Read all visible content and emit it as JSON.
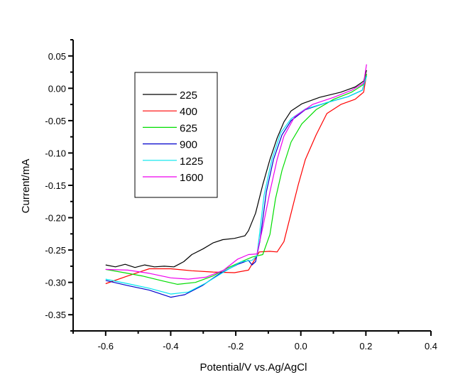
{
  "chart_data": {
    "type": "line",
    "title": "",
    "xlabel": "Potential/V vs.Ag/AgCl",
    "ylabel": "Current/mA",
    "xlim": [
      -0.7,
      0.4
    ],
    "ylim": [
      -0.375,
      0.075
    ],
    "x_ticks": [
      -0.6,
      -0.4,
      -0.2,
      0.0,
      0.2,
      0.4
    ],
    "x_tick_labels": [
      "-0.6",
      "-0.4",
      "-0.2",
      "0.0",
      "0.2",
      "0.4"
    ],
    "x_minor_ticks": [
      -0.7,
      -0.5,
      -0.3,
      -0.1,
      0.1,
      0.3
    ],
    "y_ticks": [
      0.05,
      0.0,
      -0.05,
      -0.1,
      -0.15,
      -0.2,
      -0.25,
      -0.3,
      -0.35
    ],
    "y_tick_labels": [
      "0.05",
      "0.00",
      "-0.05",
      "-0.10",
      "-0.15",
      "-0.20",
      "-0.25",
      "-0.30",
      "-0.35"
    ],
    "y_minor_ticks": [
      0.075,
      0.025,
      -0.025,
      -0.075,
      -0.125,
      -0.175,
      -0.225,
      -0.275,
      -0.325,
      -0.375
    ],
    "grid": false,
    "legend_position": "top-left",
    "series": [
      {
        "name": "225",
        "color": "#000000",
        "points": [
          [
            -0.6,
            -0.273
          ],
          [
            -0.57,
            -0.276
          ],
          [
            -0.54,
            -0.272
          ],
          [
            -0.51,
            -0.277
          ],
          [
            -0.48,
            -0.273
          ],
          [
            -0.45,
            -0.276
          ],
          [
            -0.42,
            -0.275
          ],
          [
            -0.39,
            -0.276
          ],
          [
            -0.36,
            -0.268
          ],
          [
            -0.335,
            -0.257
          ],
          [
            -0.3,
            -0.248
          ],
          [
            -0.27,
            -0.239
          ],
          [
            -0.24,
            -0.234
          ],
          [
            -0.204,
            -0.232
          ],
          [
            -0.172,
            -0.228
          ],
          [
            -0.161,
            -0.22
          ],
          [
            -0.139,
            -0.193
          ],
          [
            -0.117,
            -0.149
          ],
          [
            -0.095,
            -0.11
          ],
          [
            -0.073,
            -0.077
          ],
          [
            -0.052,
            -0.052
          ],
          [
            -0.03,
            -0.035
          ],
          [
            0.003,
            -0.024
          ],
          [
            0.058,
            -0.014
          ],
          [
            0.123,
            -0.006
          ],
          [
            0.167,
            0.002
          ],
          [
            0.193,
            0.011
          ],
          [
            0.202,
            0.028
          ]
        ]
      },
      {
        "name": "400",
        "color": "#ff0000",
        "points": [
          [
            -0.6,
            -0.302
          ],
          [
            -0.532,
            -0.29
          ],
          [
            -0.466,
            -0.279
          ],
          [
            -0.4,
            -0.279
          ],
          [
            -0.335,
            -0.282
          ],
          [
            -0.27,
            -0.284
          ],
          [
            -0.204,
            -0.285
          ],
          [
            -0.161,
            -0.281
          ],
          [
            -0.128,
            -0.253
          ],
          [
            -0.095,
            -0.252
          ],
          [
            -0.073,
            -0.253
          ],
          [
            -0.052,
            -0.237
          ],
          [
            -0.03,
            -0.193
          ],
          [
            -0.008,
            -0.149
          ],
          [
            0.014,
            -0.11
          ],
          [
            0.047,
            -0.072
          ],
          [
            0.08,
            -0.039
          ],
          [
            0.123,
            -0.025
          ],
          [
            0.167,
            -0.017
          ],
          [
            0.193,
            -0.006
          ],
          [
            0.202,
            0.022
          ]
        ]
      },
      {
        "name": "625",
        "color": "#00dd00",
        "points": [
          [
            -0.6,
            -0.28
          ],
          [
            -0.543,
            -0.285
          ],
          [
            -0.488,
            -0.29
          ],
          [
            -0.423,
            -0.298
          ],
          [
            -0.379,
            -0.303
          ],
          [
            -0.324,
            -0.3
          ],
          [
            -0.27,
            -0.29
          ],
          [
            -0.226,
            -0.278
          ],
          [
            -0.183,
            -0.268
          ],
          [
            -0.15,
            -0.261
          ],
          [
            -0.117,
            -0.257
          ],
          [
            -0.095,
            -0.226
          ],
          [
            -0.078,
            -0.171
          ],
          [
            -0.058,
            -0.127
          ],
          [
            -0.03,
            -0.083
          ],
          [
            0.003,
            -0.055
          ],
          [
            0.047,
            -0.033
          ],
          [
            0.101,
            -0.017
          ],
          [
            0.156,
            -0.006
          ],
          [
            0.193,
            0.006
          ],
          [
            0.202,
            0.022
          ]
        ]
      },
      {
        "name": "900",
        "color": "#0000cc",
        "points": [
          [
            -0.6,
            -0.297
          ],
          [
            -0.532,
            -0.305
          ],
          [
            -0.466,
            -0.312
          ],
          [
            -0.4,
            -0.323
          ],
          [
            -0.357,
            -0.319
          ],
          [
            -0.303,
            -0.305
          ],
          [
            -0.248,
            -0.286
          ],
          [
            -0.194,
            -0.272
          ],
          [
            -0.161,
            -0.266
          ],
          [
            -0.15,
            -0.273
          ],
          [
            -0.139,
            -0.268
          ],
          [
            -0.126,
            -0.237
          ],
          [
            -0.106,
            -0.16
          ],
          [
            -0.084,
            -0.11
          ],
          [
            -0.058,
            -0.072
          ],
          [
            -0.03,
            -0.05
          ],
          [
            0.014,
            -0.033
          ],
          [
            0.08,
            -0.022
          ],
          [
            0.145,
            -0.013
          ],
          [
            0.189,
            -0.003
          ],
          [
            0.202,
            0.019
          ]
        ]
      },
      {
        "name": "1225",
        "color": "#00e5ee",
        "points": [
          [
            -0.6,
            -0.295
          ],
          [
            -0.532,
            -0.302
          ],
          [
            -0.466,
            -0.309
          ],
          [
            -0.4,
            -0.318
          ],
          [
            -0.346,
            -0.315
          ],
          [
            -0.292,
            -0.301
          ],
          [
            -0.237,
            -0.284
          ],
          [
            -0.183,
            -0.268
          ],
          [
            -0.15,
            -0.266
          ],
          [
            -0.135,
            -0.259
          ],
          [
            -0.113,
            -0.165
          ],
          [
            -0.089,
            -0.11
          ],
          [
            -0.062,
            -0.069
          ],
          [
            -0.03,
            -0.047
          ],
          [
            0.014,
            -0.032
          ],
          [
            0.08,
            -0.022
          ],
          [
            0.145,
            -0.013
          ],
          [
            0.189,
            -0.003
          ],
          [
            0.202,
            0.019
          ]
        ]
      },
      {
        "name": "1600",
        "color": "#ee00ee",
        "points": [
          [
            -0.6,
            -0.28
          ],
          [
            -0.532,
            -0.281
          ],
          [
            -0.466,
            -0.286
          ],
          [
            -0.4,
            -0.293
          ],
          [
            -0.346,
            -0.295
          ],
          [
            -0.292,
            -0.292
          ],
          [
            -0.237,
            -0.281
          ],
          [
            -0.194,
            -0.264
          ],
          [
            -0.161,
            -0.257
          ],
          [
            -0.135,
            -0.256
          ],
          [
            -0.117,
            -0.215
          ],
          [
            -0.095,
            -0.16
          ],
          [
            -0.073,
            -0.11
          ],
          [
            -0.052,
            -0.074
          ],
          [
            -0.019,
            -0.044
          ],
          [
            0.036,
            -0.025
          ],
          [
            0.101,
            -0.014
          ],
          [
            0.156,
            -0.003
          ],
          [
            0.193,
            0.008
          ],
          [
            0.202,
            0.037
          ]
        ]
      }
    ]
  }
}
